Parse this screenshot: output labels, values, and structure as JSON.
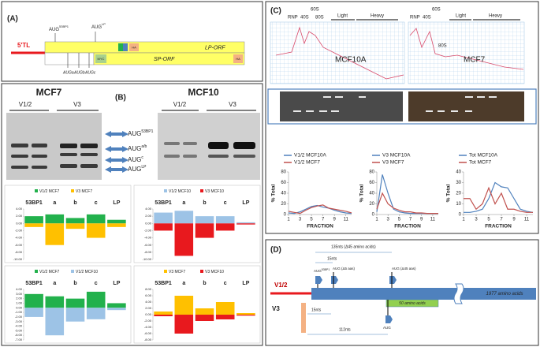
{
  "panel_a": {
    "label": "(A)",
    "utr": "5'TL",
    "aug_53bp1": {
      "base": "AUG",
      "sup": "53BP1"
    },
    "aug_lp": {
      "base": "AUG",
      "sup": "LP"
    },
    "lp_orf": "LP-ORF",
    "sp_orf": "SP-ORF",
    "myc": "MYC",
    "ha": [
      "HA",
      "HA"
    ],
    "aug_internal": [
      "AUGa",
      "AUGb",
      "AUGc"
    ]
  },
  "panel_b": {
    "label": "(B)",
    "cell_lines": [
      "MCF7",
      "MCF10"
    ],
    "lanes": [
      "V1/2",
      "V3",
      "V1/2",
      "V3"
    ],
    "bands": [
      {
        "base": "AUG",
        "sup": "53BP1"
      },
      {
        "base": "AUG",
        "sup": "a/b"
      },
      {
        "base": "AUG",
        "sup": "c"
      },
      {
        "base": "AUG",
        "sup": "LP"
      }
    ],
    "charts": [
      {
        "type": "bar",
        "categories": [
          "53BP1",
          "a",
          "b",
          "c",
          "LP"
        ],
        "ylim": [
          -10,
          4
        ],
        "yticks": [
          {
            "value": 4,
            "label": "4.00"
          },
          {
            "value": 2,
            "label": "2.00"
          },
          {
            "value": 0,
            "label": "0.00"
          },
          {
            "value": -2,
            "label": "-2.00"
          },
          {
            "value": -4,
            "label": "-4.00"
          },
          {
            "value": -6,
            "label": "-6.00"
          },
          {
            "value": -8,
            "label": "-8.00"
          },
          {
            "value": -10,
            "label": "-10.00"
          }
        ],
        "series": [
          {
            "name": "V1/2 MCF7",
            "color": "#22b14c",
            "values": [
              2,
              2.5,
              1.5,
              2.5,
              1
            ]
          },
          {
            "name": "V3 MCF7",
            "color": "#ffc000",
            "values": [
              -1,
              -6,
              -1.5,
              -4,
              -1
            ]
          }
        ]
      },
      {
        "type": "bar",
        "categories": [
          "53BP1",
          "a",
          "b",
          "c",
          "LP"
        ],
        "ylim": [
          -10,
          4
        ],
        "yticks": [
          {
            "value": 4,
            "label": "4.00"
          },
          {
            "value": 2,
            "label": "2.00"
          },
          {
            "value": 0,
            "label": "0.00"
          },
          {
            "value": -2,
            "label": "-2.00"
          },
          {
            "value": -4,
            "label": "-4.00"
          },
          {
            "value": -6,
            "label": "-6.00"
          },
          {
            "value": -8,
            "label": "-8.00"
          },
          {
            "value": -10,
            "label": "-10.00"
          }
        ],
        "series": [
          {
            "name": "V1/2 MCF10",
            "color": "#9dc3e6",
            "values": [
              3,
              3.5,
              2,
              2,
              0.3
            ]
          },
          {
            "name": "V3 MCF10",
            "color": "#e8191e",
            "values": [
              -2,
              -9,
              -4,
              -2,
              -0.3
            ]
          }
        ]
      },
      {
        "type": "bar",
        "categories": [
          "53BP1",
          "a",
          "b",
          "c",
          "LP"
        ],
        "ylim": [
          -7,
          4
        ],
        "yticks": [
          {
            "value": 4,
            "label": "4.00"
          },
          {
            "value": 3,
            "label": "3.00"
          },
          {
            "value": 2,
            "label": "2.00"
          },
          {
            "value": 1,
            "label": "1.00"
          },
          {
            "value": 0,
            "label": "0.00"
          },
          {
            "value": -1,
            "label": "-1.00"
          },
          {
            "value": -2,
            "label": "-2.00"
          },
          {
            "value": -3,
            "label": "-3.00"
          },
          {
            "value": -4,
            "label": "-4.00"
          },
          {
            "value": -5,
            "label": "-5.00"
          },
          {
            "value": -6,
            "label": "-6.00"
          },
          {
            "value": -7,
            "label": "-7.00"
          }
        ],
        "series": [
          {
            "name": "V1/2 MCF7",
            "color": "#22b14c",
            "values": [
              3,
              2.5,
              2,
              3.5,
              1
            ]
          },
          {
            "name": "V1/2 MCF10",
            "color": "#9dc3e6",
            "values": [
              -2,
              -6,
              -3,
              -2.5,
              -0.5
            ]
          }
        ]
      },
      {
        "type": "bar",
        "categories": [
          "53BP1",
          "a",
          "b",
          "c",
          "LP"
        ],
        "ylim": [
          -8,
          8
        ],
        "yticks": [
          {
            "value": 8,
            "label": "8.00"
          },
          {
            "value": 6,
            "label": "6.00"
          },
          {
            "value": 4,
            "label": "4.00"
          },
          {
            "value": 2,
            "label": "2.00"
          },
          {
            "value": 0,
            "label": "0.00"
          },
          {
            "value": -2,
            "label": "-2.00"
          },
          {
            "value": -4,
            "label": "-4.00"
          },
          {
            "value": -6,
            "label": "-6.00"
          },
          {
            "value": -8,
            "label": "-8.00"
          }
        ],
        "series": [
          {
            "name": "V3 MCF7",
            "color": "#ffc000",
            "values": [
              1,
              6,
              2,
              4,
              0.5
            ]
          },
          {
            "name": "V3 MCF10",
            "color": "#e8191e",
            "values": [
              -0.5,
              -6,
              -2,
              -1.5,
              -0.3
            ]
          }
        ]
      }
    ]
  },
  "panel_c": {
    "label": "(C)",
    "profiles": [
      {
        "name": "MCF10A",
        "rnp": "RNP",
        "s40": "40S",
        "s60": "60S",
        "s80": "80S",
        "light": "Light",
        "heavy": "Heavy"
      },
      {
        "name": "MCF7",
        "rnp": "RNP",
        "s40": "40S",
        "s60": "60S",
        "s80": "80S",
        "light": "Light",
        "heavy": "Heavy"
      }
    ],
    "charts": [
      {
        "type": "line",
        "y_label": "% Total",
        "x_label": "FRACTION",
        "x": [
          1,
          2,
          3,
          4,
          5,
          6,
          7,
          8,
          9,
          10,
          11,
          12
        ],
        "xlim": [
          1,
          12
        ],
        "xticks": [
          1,
          3,
          5,
          7,
          9,
          11
        ],
        "ylim": [
          0,
          80
        ],
        "yticks": [
          0,
          20,
          40,
          60,
          80
        ],
        "series": [
          {
            "name": "V1/2 MCF10A",
            "color": "#4f81bd",
            "values": [
              3,
              2,
              5,
              10,
              15,
              17,
              14,
              12,
              8,
              5,
              3,
              2
            ]
          },
          {
            "name": "V1/2 MCF7",
            "color": "#c0504d",
            "values": [
              6,
              4,
              2,
              8,
              13,
              16,
              18,
              12,
              10,
              8,
              6,
              3
            ]
          }
        ]
      },
      {
        "type": "line",
        "y_label": "% Total",
        "x_label": "FRACTION",
        "x": [
          1,
          2,
          3,
          4,
          5,
          6,
          7,
          8,
          9,
          10,
          11,
          12
        ],
        "xlim": [
          1,
          12
        ],
        "xticks": [
          1,
          3,
          5,
          7,
          9,
          11
        ],
        "ylim": [
          0,
          80
        ],
        "yticks": [
          0,
          20,
          40,
          60,
          80
        ],
        "series": [
          {
            "name": "V3 MCF10A",
            "color": "#4f81bd",
            "values": [
              5,
              75,
              40,
              10,
              5,
              3,
              2,
              2,
              2,
              2,
              2,
              2
            ]
          },
          {
            "name": "V3  MCF7",
            "color": "#c0504d",
            "values": [
              10,
              40,
              20,
              12,
              8,
              5,
              5,
              3,
              3,
              2,
              2,
              2
            ]
          }
        ]
      },
      {
        "type": "line",
        "y_label": "% Total",
        "x_label": "FRACTION",
        "x": [
          1,
          2,
          3,
          4,
          5,
          6,
          7,
          8,
          9,
          10,
          11,
          12
        ],
        "xlim": [
          1,
          12
        ],
        "xticks": [
          1,
          3,
          5,
          7,
          9,
          11
        ],
        "ylim": [
          0,
          40
        ],
        "yticks": [
          0,
          10,
          20,
          30,
          40
        ],
        "series": [
          {
            "name": "Tot MCF10A",
            "color": "#4f81bd",
            "values": [
              2,
              2,
              3,
              5,
              15,
              30,
              26,
              25,
              15,
              5,
              3,
              2
            ]
          },
          {
            "name": "Tot  MCF7",
            "color": "#c0504d",
            "values": [
              15,
              15,
              5,
              10,
              25,
              10,
              20,
              5,
              5,
              3,
              2,
              2
            ]
          }
        ]
      }
    ]
  },
  "panel_d": {
    "label": "(D)",
    "span_135": "135nts (Δ45 amino acids)",
    "span_15_top": "15nts",
    "aug_53bp1": {
      "base": "AUG",
      "sup": "53BP1"
    },
    "aug_d5": "AUG (Δ5 aas)",
    "aug_d45": "AUG (Δ45 aas)",
    "v12": "V1/2",
    "v3": "V3",
    "span_15_bottom": "15nts",
    "aa50": "50 amino acids",
    "aa1977": "1977 amino acids",
    "span_112": "112nts",
    "aug_bottom": "AUG"
  }
}
